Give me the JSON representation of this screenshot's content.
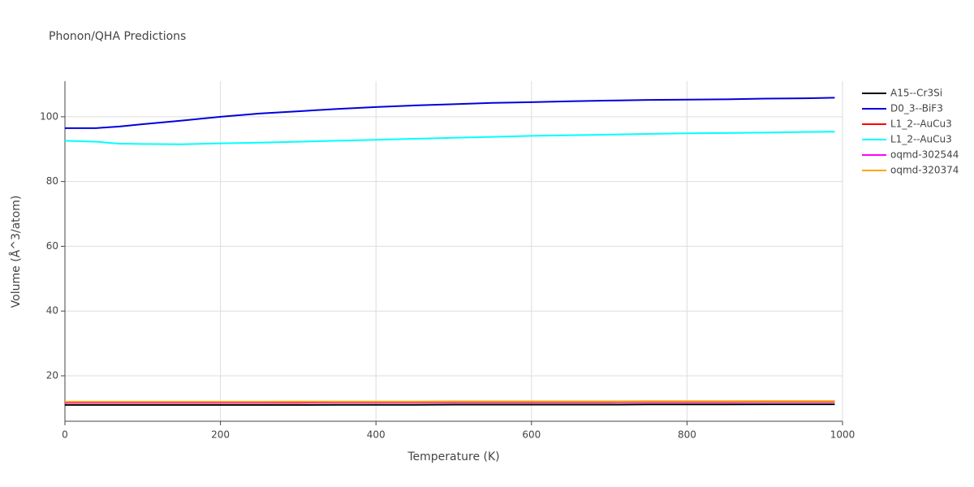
{
  "chart_data": {
    "type": "line",
    "title": "Phonon/QHA Predictions",
    "x_label": "Temperature (K)",
    "y_label": "Volume (Å^3/atom)",
    "x": [
      0,
      40,
      70,
      100,
      150,
      200,
      250,
      300,
      350,
      400,
      450,
      500,
      550,
      600,
      650,
      700,
      750,
      800,
      850,
      900,
      950,
      990
    ],
    "series": [
      {
        "name": "A15--Cr3Si",
        "color": "#000000",
        "values": [
          11.0,
          11.0,
          11.0,
          11.0,
          11.0,
          11.0,
          11.0,
          11.0,
          11.05,
          11.05,
          11.05,
          11.1,
          11.1,
          11.1,
          11.1,
          11.1,
          11.15,
          11.15,
          11.15,
          11.2,
          11.2,
          11.2
        ]
      },
      {
        "name": "D0_3--BiF3",
        "color": "#0000dd",
        "values": [
          96.5,
          96.5,
          97.0,
          97.7,
          98.8,
          100.0,
          101.0,
          101.7,
          102.4,
          103.0,
          103.5,
          103.9,
          104.3,
          104.5,
          104.8,
          105.0,
          105.2,
          105.3,
          105.4,
          105.6,
          105.7,
          105.9
        ]
      },
      {
        "name": "L1_2--AuCu3",
        "color": "#ff0000",
        "values": [
          11.7,
          11.7,
          11.7,
          11.7,
          11.7,
          11.7,
          11.7,
          11.7,
          11.75,
          11.75,
          11.75,
          11.8,
          11.8,
          11.8,
          11.8,
          11.8,
          11.85,
          11.85,
          11.85,
          11.9,
          11.9,
          11.9
        ]
      },
      {
        "name": "L1_2--AuCu3",
        "color": "#00ffff",
        "values": [
          92.6,
          92.3,
          91.7,
          91.6,
          91.5,
          91.8,
          92.0,
          92.3,
          92.6,
          92.9,
          93.2,
          93.5,
          93.8,
          94.1,
          94.3,
          94.5,
          94.7,
          94.9,
          95.0,
          95.1,
          95.3,
          95.4
        ]
      },
      {
        "name": "oqmd-302544",
        "color": "#ff00ff",
        "values": [
          11.8,
          11.8,
          11.8,
          11.8,
          11.8,
          11.8,
          11.8,
          11.85,
          11.85,
          11.85,
          11.85,
          11.9,
          11.9,
          11.9,
          11.9,
          11.9,
          11.95,
          11.95,
          11.95,
          12.0,
          12.0,
          12.0
        ]
      },
      {
        "name": "oqmd-320374",
        "color": "#ffa500",
        "values": [
          12.0,
          12.0,
          12.0,
          12.0,
          12.0,
          12.0,
          12.0,
          12.05,
          12.05,
          12.05,
          12.05,
          12.1,
          12.1,
          12.1,
          12.1,
          12.1,
          12.15,
          12.15,
          12.15,
          12.2,
          12.2,
          12.2
        ]
      }
    ],
    "xlim": [
      0,
      1000
    ],
    "xticks": [
      0,
      200,
      400,
      600,
      800,
      1000
    ],
    "ylim": [
      5.96,
      111
    ],
    "yticks": [
      20,
      40,
      60,
      80,
      100
    ],
    "grid": true,
    "legend": "right"
  }
}
